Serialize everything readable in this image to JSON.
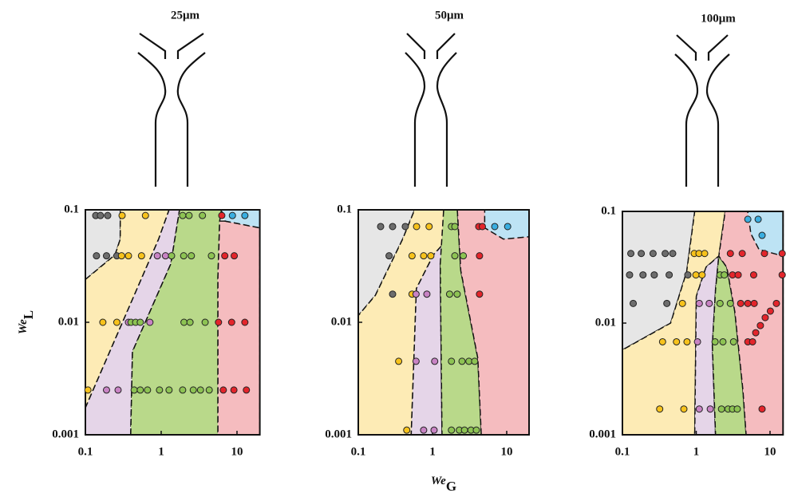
{
  "chart_data": [
    {
      "type": "scatter",
      "title": "25μm",
      "log_x": true,
      "log_y": true,
      "xlim": [
        0.1,
        20
      ],
      "ylim": [
        0.001,
        0.1
      ],
      "xticks": [
        0.1,
        1,
        10
      ],
      "yticks": [
        0.001,
        0.01,
        0.1
      ],
      "y_label": "We",
      "y_label_subscript": "L",
      "series": [
        {
          "color": "#6d6d6d",
          "x": [
            0.137,
            0.158,
            0.197,
            0.14,
            0.19,
            0.26
          ],
          "values": [
            0.089,
            0.089,
            0.089,
            0.039,
            0.039,
            0.039
          ]
        },
        {
          "color": "#f7c21b",
          "x": [
            0.305,
            0.62,
            0.3,
            0.37,
            0.55,
            0.17,
            0.26,
            0.108
          ],
          "values": [
            0.089,
            0.089,
            0.039,
            0.039,
            0.039,
            0.01,
            0.01,
            0.0025
          ]
        },
        {
          "color": "#c883c4",
          "x": [
            0.89,
            1.14,
            0.37,
            0.71,
            0.19,
            0.27
          ],
          "values": [
            0.039,
            0.039,
            0.01,
            0.01,
            0.0025,
            0.0025
          ]
        },
        {
          "color": "#8dc353",
          "x": [
            1.92,
            2.33,
            3.5,
            1.37,
            1.98,
            2.5,
            4.6,
            0.4,
            0.46,
            0.53,
            2.0,
            2.4,
            3.8,
            0.44,
            0.53,
            0.66,
            0.95,
            1.27,
            1.92,
            2.65,
            3.3,
            4.3
          ],
          "values": [
            0.089,
            0.089,
            0.089,
            0.039,
            0.039,
            0.039,
            0.039,
            0.01,
            0.01,
            0.01,
            0.01,
            0.01,
            0.01,
            0.0025,
            0.0025,
            0.0025,
            0.0025,
            0.0025,
            0.0025,
            0.0025,
            0.0025,
            0.0025
          ]
        },
        {
          "color": "#e3252b",
          "x": [
            6.3,
            6.9,
            9.2,
            5.7,
            8.5,
            12.7,
            6.6,
            9.1,
            13.3
          ],
          "values": [
            0.089,
            0.039,
            0.039,
            0.01,
            0.01,
            0.01,
            0.0025,
            0.0025,
            0.0025
          ]
        },
        {
          "color": "#3aaee0",
          "x": [
            8.7,
            12.7
          ],
          "values": [
            0.089,
            0.089
          ]
        }
      ]
    },
    {
      "type": "scatter",
      "title": "50μm",
      "log_x": true,
      "log_y": true,
      "xlim": [
        0.1,
        20
      ],
      "ylim": [
        0.001,
        0.1
      ],
      "xticks": [
        0.1,
        1,
        10
      ],
      "yticks": [
        0.001,
        0.01,
        0.1
      ],
      "x_label": "We",
      "x_label_subscript": "G",
      "series": [
        {
          "color": "#6d6d6d",
          "x": [
            0.2,
            0.29,
            0.43,
            0.26,
            0.29
          ],
          "values": [
            0.071,
            0.071,
            0.071,
            0.039,
            0.0178
          ]
        },
        {
          "color": "#f7c21b",
          "x": [
            0.61,
            0.9,
            0.53,
            0.76,
            0.95,
            0.53,
            0.35,
            0.45
          ],
          "values": [
            0.071,
            0.071,
            0.039,
            0.039,
            0.039,
            0.0178,
            0.0045,
            0.0011
          ]
        },
        {
          "color": "#c883c4",
          "x": [
            0.6,
            0.84,
            0.6,
            1.07,
            0.76,
            1.05
          ],
          "values": [
            0.0178,
            0.0178,
            0.0045,
            0.0045,
            0.0011,
            0.0011
          ]
        },
        {
          "color": "#8dc353",
          "x": [
            1.8,
            2.0,
            2.0,
            2.6,
            1.7,
            2.15,
            1.8,
            2.5,
            3.1,
            3.7,
            1.8,
            2.3,
            2.7,
            3.3,
            3.9
          ],
          "values": [
            0.071,
            0.071,
            0.039,
            0.039,
            0.0178,
            0.0178,
            0.0045,
            0.0045,
            0.0045,
            0.0045,
            0.0011,
            0.0011,
            0.0011,
            0.0011,
            0.0011
          ]
        },
        {
          "color": "#e3252b",
          "x": [
            4.2,
            4.7,
            4.3,
            4.3
          ],
          "values": [
            0.071,
            0.071,
            0.039,
            0.0178
          ]
        },
        {
          "color": "#3aaee0",
          "x": [
            6.9,
            10.3
          ],
          "values": [
            0.071,
            0.071
          ]
        }
      ]
    },
    {
      "type": "scatter",
      "title": "100μm",
      "log_x": true,
      "log_y": true,
      "xlim": [
        0.1,
        15
      ],
      "ylim": [
        0.001,
        0.1
      ],
      "xticks": [
        0.1,
        1,
        10
      ],
      "yticks": [
        0.001,
        0.01,
        0.1
      ],
      "series": [
        {
          "color": "#6d6d6d",
          "x": [
            0.13,
            0.18,
            0.26,
            0.38,
            0.48,
            0.125,
            0.19,
            0.27,
            0.43,
            0.77,
            0.14,
            0.4
          ],
          "values": [
            0.042,
            0.042,
            0.042,
            0.042,
            0.042,
            0.027,
            0.027,
            0.027,
            0.027,
            0.027,
            0.015,
            0.015
          ]
        },
        {
          "color": "#f7c21b",
          "x": [
            0.94,
            1.09,
            1.3,
            0.99,
            1.2,
            0.65,
            0.35,
            0.54,
            0.75,
            0.32,
            0.68
          ],
          "values": [
            0.042,
            0.042,
            0.042,
            0.027,
            0.027,
            0.015,
            0.0068,
            0.0068,
            0.0068,
            0.0017,
            0.0017
          ]
        },
        {
          "color": "#c883c4",
          "x": [
            1.1,
            1.5,
            1.04,
            1.1,
            1.55
          ],
          "values": [
            0.015,
            0.015,
            0.0068,
            0.0017,
            0.0017
          ]
        },
        {
          "color": "#8dc353",
          "x": [
            2.1,
            2.4,
            2.1,
            2.9,
            1.8,
            2.3,
            3.2,
            2.2,
            2.7,
            3.1,
            3.6
          ],
          "values": [
            0.027,
            0.027,
            0.015,
            0.015,
            0.0068,
            0.0068,
            0.0068,
            0.0017,
            0.0017,
            0.0017,
            0.0017
          ]
        },
        {
          "color": "#e3252b",
          "x": [
            2.9,
            4.2,
            8.4,
            14.6,
            3.1,
            3.7,
            6.0,
            14.6,
            4.0,
            5.0,
            6.1,
            12.2,
            10.1,
            8.6,
            7.4,
            6.4,
            5.0,
            5.8,
            7.8
          ],
          "values": [
            0.042,
            0.042,
            0.042,
            0.042,
            0.027,
            0.027,
            0.027,
            0.027,
            0.015,
            0.015,
            0.015,
            0.015,
            0.0128,
            0.0112,
            0.0095,
            0.0082,
            0.0068,
            0.0068,
            0.0017
          ]
        },
        {
          "color": "#3aaee0",
          "x": [
            5.0,
            6.9,
            7.8
          ],
          "values": [
            0.085,
            0.085,
            0.061
          ]
        }
      ]
    }
  ]
}
